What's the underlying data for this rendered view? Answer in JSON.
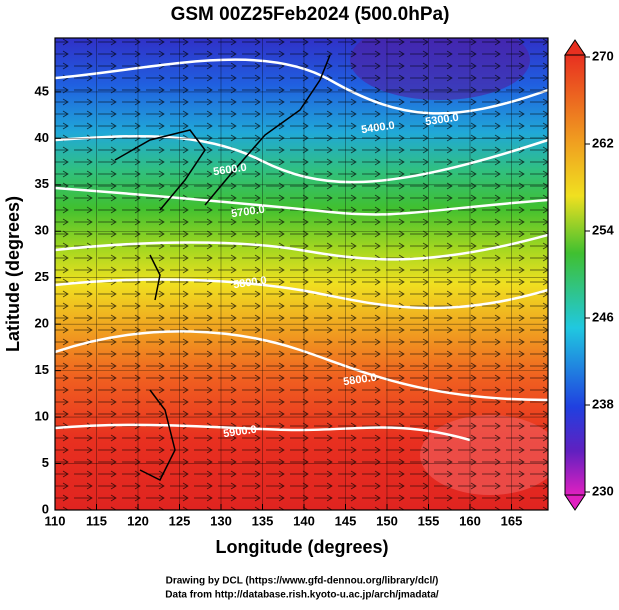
{
  "chart_data": {
    "type": "map",
    "title": "GSM 00Z25Feb2024 (500.0hPa)",
    "xlabel": "Longitude (degrees)",
    "ylabel": "Latitude  (degrees)",
    "xlim": [
      110,
      169.4
    ],
    "xticks": [
      110,
      115,
      120,
      125,
      130,
      135,
      140,
      145,
      150,
      155,
      160,
      165
    ],
    "ylim": [
      0,
      50.8
    ],
    "yticks": [
      0,
      5,
      10,
      15,
      20,
      25,
      30,
      35,
      40,
      45
    ],
    "grid": true,
    "colorbar": {
      "lim": [
        230,
        270
      ],
      "ticks": [
        230,
        238,
        246,
        254,
        262,
        270
      ]
    },
    "contour_labels": [
      "5300.0",
      "5400.0",
      "5600.0",
      "5700.0",
      "5800.0",
      "5800.0",
      "5900.0"
    ],
    "footer": [
      "Drawing by DCL (https://www.gfd-dennou.org/library/dcl/)",
      "Data from http://database.rish.kyoto-u.ac.jp/arch/jmadata/"
    ]
  }
}
